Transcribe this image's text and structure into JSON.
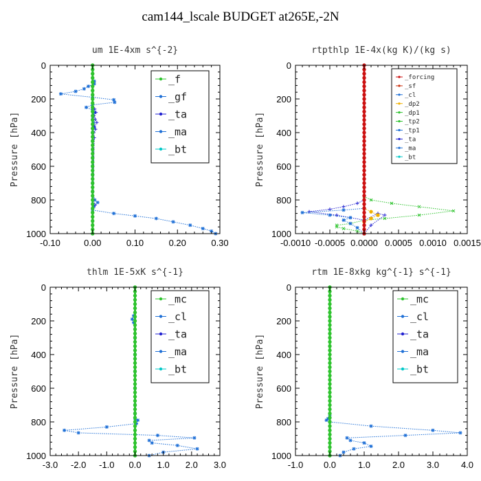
{
  "figure_title": "cam144_lscale  BUDGET at265E,-2N",
  "chart_data": [
    {
      "type": "line",
      "title": "um  1E-4xm s^{-2}",
      "ylabel": "Pressure [hPa]",
      "xlim": [
        -0.1,
        0.3
      ],
      "ylim": [
        1000,
        0
      ],
      "xticks": [
        "-0.10",
        "0.00",
        "0.10",
        "0.20",
        "0.30"
      ],
      "xtick_values": [
        -0.1,
        0.0,
        0.1,
        0.2,
        0.3
      ],
      "yticks": [
        "0",
        "200",
        "400",
        "600",
        "800",
        "1000"
      ],
      "legend_position": "top-right",
      "legend_entries": [
        "_f",
        "_gf",
        "_ta",
        "_ma",
        "_bt"
      ],
      "series": [
        {
          "name": "_gf",
          "color": "#1e6fd6",
          "marker": "star",
          "style": "dotted",
          "x": [
            0.004,
            0.004,
            -0.01,
            -0.02,
            -0.04,
            -0.075,
            0.0,
            0.05,
            0.052,
            0.0,
            -0.015,
            0.0,
            0.004,
            0.002,
            0.0,
            0.002,
            0.004,
            0.0,
            0.0,
            0.0,
            0.0,
            0.0,
            0.0,
            0.0,
            0.0,
            0.005,
            0.012,
            0.003,
            0.0,
            0.05,
            0.1,
            0.15,
            0.19,
            0.23,
            0.26,
            0.28,
            0.29
          ],
          "y": [
            95,
            110,
            125,
            140,
            155,
            170,
            190,
            205,
            220,
            235,
            250,
            265,
            280,
            300,
            320,
            340,
            370,
            400,
            450,
            500,
            550,
            600,
            650,
            700,
            750,
            800,
            815,
            840,
            860,
            880,
            895,
            910,
            930,
            950,
            970,
            985,
            1000
          ]
        },
        {
          "name": "_ta",
          "color": "#2020d0",
          "marker": "plus",
          "style": "dotted",
          "x": [
            0.005,
            0.008,
            0.003,
            0.006,
            0.01,
            0.004,
            0.007,
            0.003,
            0.004,
            0.001,
            0.006
          ],
          "y": [
            260,
            280,
            300,
            320,
            340,
            360,
            380,
            400,
            430,
            800,
            830
          ]
        },
        {
          "name": "_f",
          "color": "#2ec32e",
          "marker": "circle",
          "style": "solid",
          "x": [
            0,
            0
          ],
          "y": [
            0,
            1000
          ]
        }
      ]
    },
    {
      "type": "line",
      "title": "rtpthlp  1E-4x(kg K)/(kg s)",
      "ylabel": "Pressure [hPa]",
      "xlim": [
        -0.001,
        0.0015
      ],
      "ylim": [
        1000,
        0
      ],
      "xticks": [
        "-0.0010",
        "-0.0005",
        "0.0000",
        "0.0005",
        "0.0010",
        "0.0015"
      ],
      "xtick_values": [
        -0.001,
        -0.0005,
        0.0,
        0.0005,
        0.001,
        0.0015
      ],
      "yticks": [
        "0",
        "200",
        "400",
        "600",
        "800",
        "1000"
      ],
      "legend_position": "top-right",
      "legend_entries": [
        "_forcing",
        "_sf",
        "_cl",
        "_dp2",
        "_dp1",
        "_tp2",
        "_tp1",
        "_ta",
        "_ma",
        "_bt"
      ],
      "series": [
        {
          "name": "_dp1",
          "color": "#2ec32e",
          "marker": "x",
          "style": "dotted",
          "x": [
            0.0,
            0.0001,
            0.0004,
            0.0008,
            0.0013,
            0.0008,
            0.0003,
            0.0,
            -0.0002,
            -0.0004,
            -0.0004,
            -0.0003,
            -0.0001,
            0.0
          ],
          "y": [
            780,
            800,
            820,
            840,
            865,
            890,
            910,
            920,
            940,
            950,
            960,
            970,
            985,
            1000
          ]
        },
        {
          "name": "_ta",
          "color": "#2020d0",
          "marker": "plus",
          "style": "dotted",
          "x": [
            0.0,
            -0.0001,
            -0.0003,
            -0.0005,
            -0.0008,
            -0.0004,
            -0.0002,
            0.0,
            0.0002,
            0.0003,
            0.0001,
            0.0
          ],
          "y": [
            800,
            820,
            840,
            855,
            870,
            890,
            905,
            920,
            880,
            890,
            950,
            1000
          ]
        },
        {
          "name": "_tp1",
          "color": "#1e6fd6",
          "marker": "star",
          "style": "dotted",
          "x": [
            0.0,
            -0.0003,
            -0.0009,
            -0.0005,
            -0.0002,
            -0.0003,
            -0.0002,
            -0.0001,
            0.0
          ],
          "y": [
            850,
            860,
            875,
            890,
            905,
            920,
            940,
            965,
            1000
          ]
        },
        {
          "name": "_cl",
          "color": "#f0b000",
          "marker": "circle",
          "style": "dotted",
          "x": [
            0.0,
            0.0001,
            0.0002,
            0.0001,
            0.0
          ],
          "y": [
            850,
            870,
            890,
            910,
            930
          ]
        },
        {
          "name": "_forcing",
          "color": "#cc1111",
          "marker": "circle",
          "style": "solid",
          "x": [
            0,
            0
          ],
          "y": [
            0,
            1000
          ]
        }
      ]
    },
    {
      "type": "line",
      "title": "thlm  1E-5xK s^{-1}",
      "ylabel": "Pressure [hPa]",
      "xlim": [
        -3.0,
        3.0
      ],
      "ylim": [
        1000,
        0
      ],
      "xticks": [
        "-3.0",
        "-2.0",
        "-1.0",
        "0.0",
        "1.0",
        "2.0",
        "3.0"
      ],
      "xtick_values": [
        -3,
        -2,
        -1,
        0,
        1,
        2,
        3
      ],
      "yticks": [
        "0",
        "200",
        "400",
        "600",
        "800",
        "1000"
      ],
      "legend_position": "top-right",
      "legend_entries": [
        "_mc",
        "_cl",
        "_ta",
        "_ma",
        "_bt"
      ],
      "series": [
        {
          "name": "_cl",
          "color": "#1e6fd6",
          "marker": "star",
          "style": "dotted",
          "x": [
            -0.05,
            -0.1,
            -0.05,
            0.0,
            0.0,
            0.0,
            0.0,
            0.0,
            0.0,
            0.0,
            0.1,
            0.05,
            -1.0,
            -2.5,
            -2.0,
            0.8,
            2.1,
            0.5,
            0.6,
            1.5,
            2.2,
            1.0,
            0.5
          ],
          "y": [
            170,
            190,
            210,
            300,
            400,
            500,
            600,
            700,
            750,
            780,
            790,
            810,
            830,
            850,
            865,
            880,
            895,
            910,
            925,
            940,
            960,
            980,
            1000
          ]
        },
        {
          "name": "_mc",
          "color": "#2ec32e",
          "marker": "circle",
          "style": "solid",
          "x": [
            0,
            0
          ],
          "y": [
            0,
            1000
          ]
        }
      ]
    },
    {
      "type": "line",
      "title": "rtm  1E-8xkg kg^{-1} s^{-1}",
      "ylabel": "Pressure [hPa]",
      "xlim": [
        -1.0,
        4.0
      ],
      "ylim": [
        1000,
        0
      ],
      "xticks": [
        "-1.0",
        "0.0",
        "1.0",
        "2.0",
        "3.0",
        "4.0"
      ],
      "xtick_values": [
        -1,
        0,
        1,
        2,
        3,
        4
      ],
      "yticks": [
        "0",
        "200",
        "400",
        "600",
        "800",
        "1000"
      ],
      "legend_position": "top-right",
      "legend_entries": [
        "_mc",
        "_cl",
        "_ta",
        "_ma",
        "_bt"
      ],
      "series": [
        {
          "name": "_cl",
          "color": "#1e6fd6",
          "marker": "star",
          "style": "dotted",
          "x": [
            0.0,
            -0.05,
            -0.1,
            0.0,
            1.2,
            3.0,
            3.8,
            2.2,
            0.5,
            0.6,
            1.0,
            1.2,
            0.7,
            0.4,
            0.3
          ],
          "y": [
            760,
            780,
            790,
            800,
            825,
            850,
            865,
            880,
            895,
            910,
            925,
            945,
            960,
            980,
            1000
          ]
        },
        {
          "name": "_mc",
          "color": "#2ec32e",
          "marker": "circle",
          "style": "solid",
          "x": [
            0,
            0
          ],
          "y": [
            0,
            1000
          ]
        }
      ]
    }
  ]
}
